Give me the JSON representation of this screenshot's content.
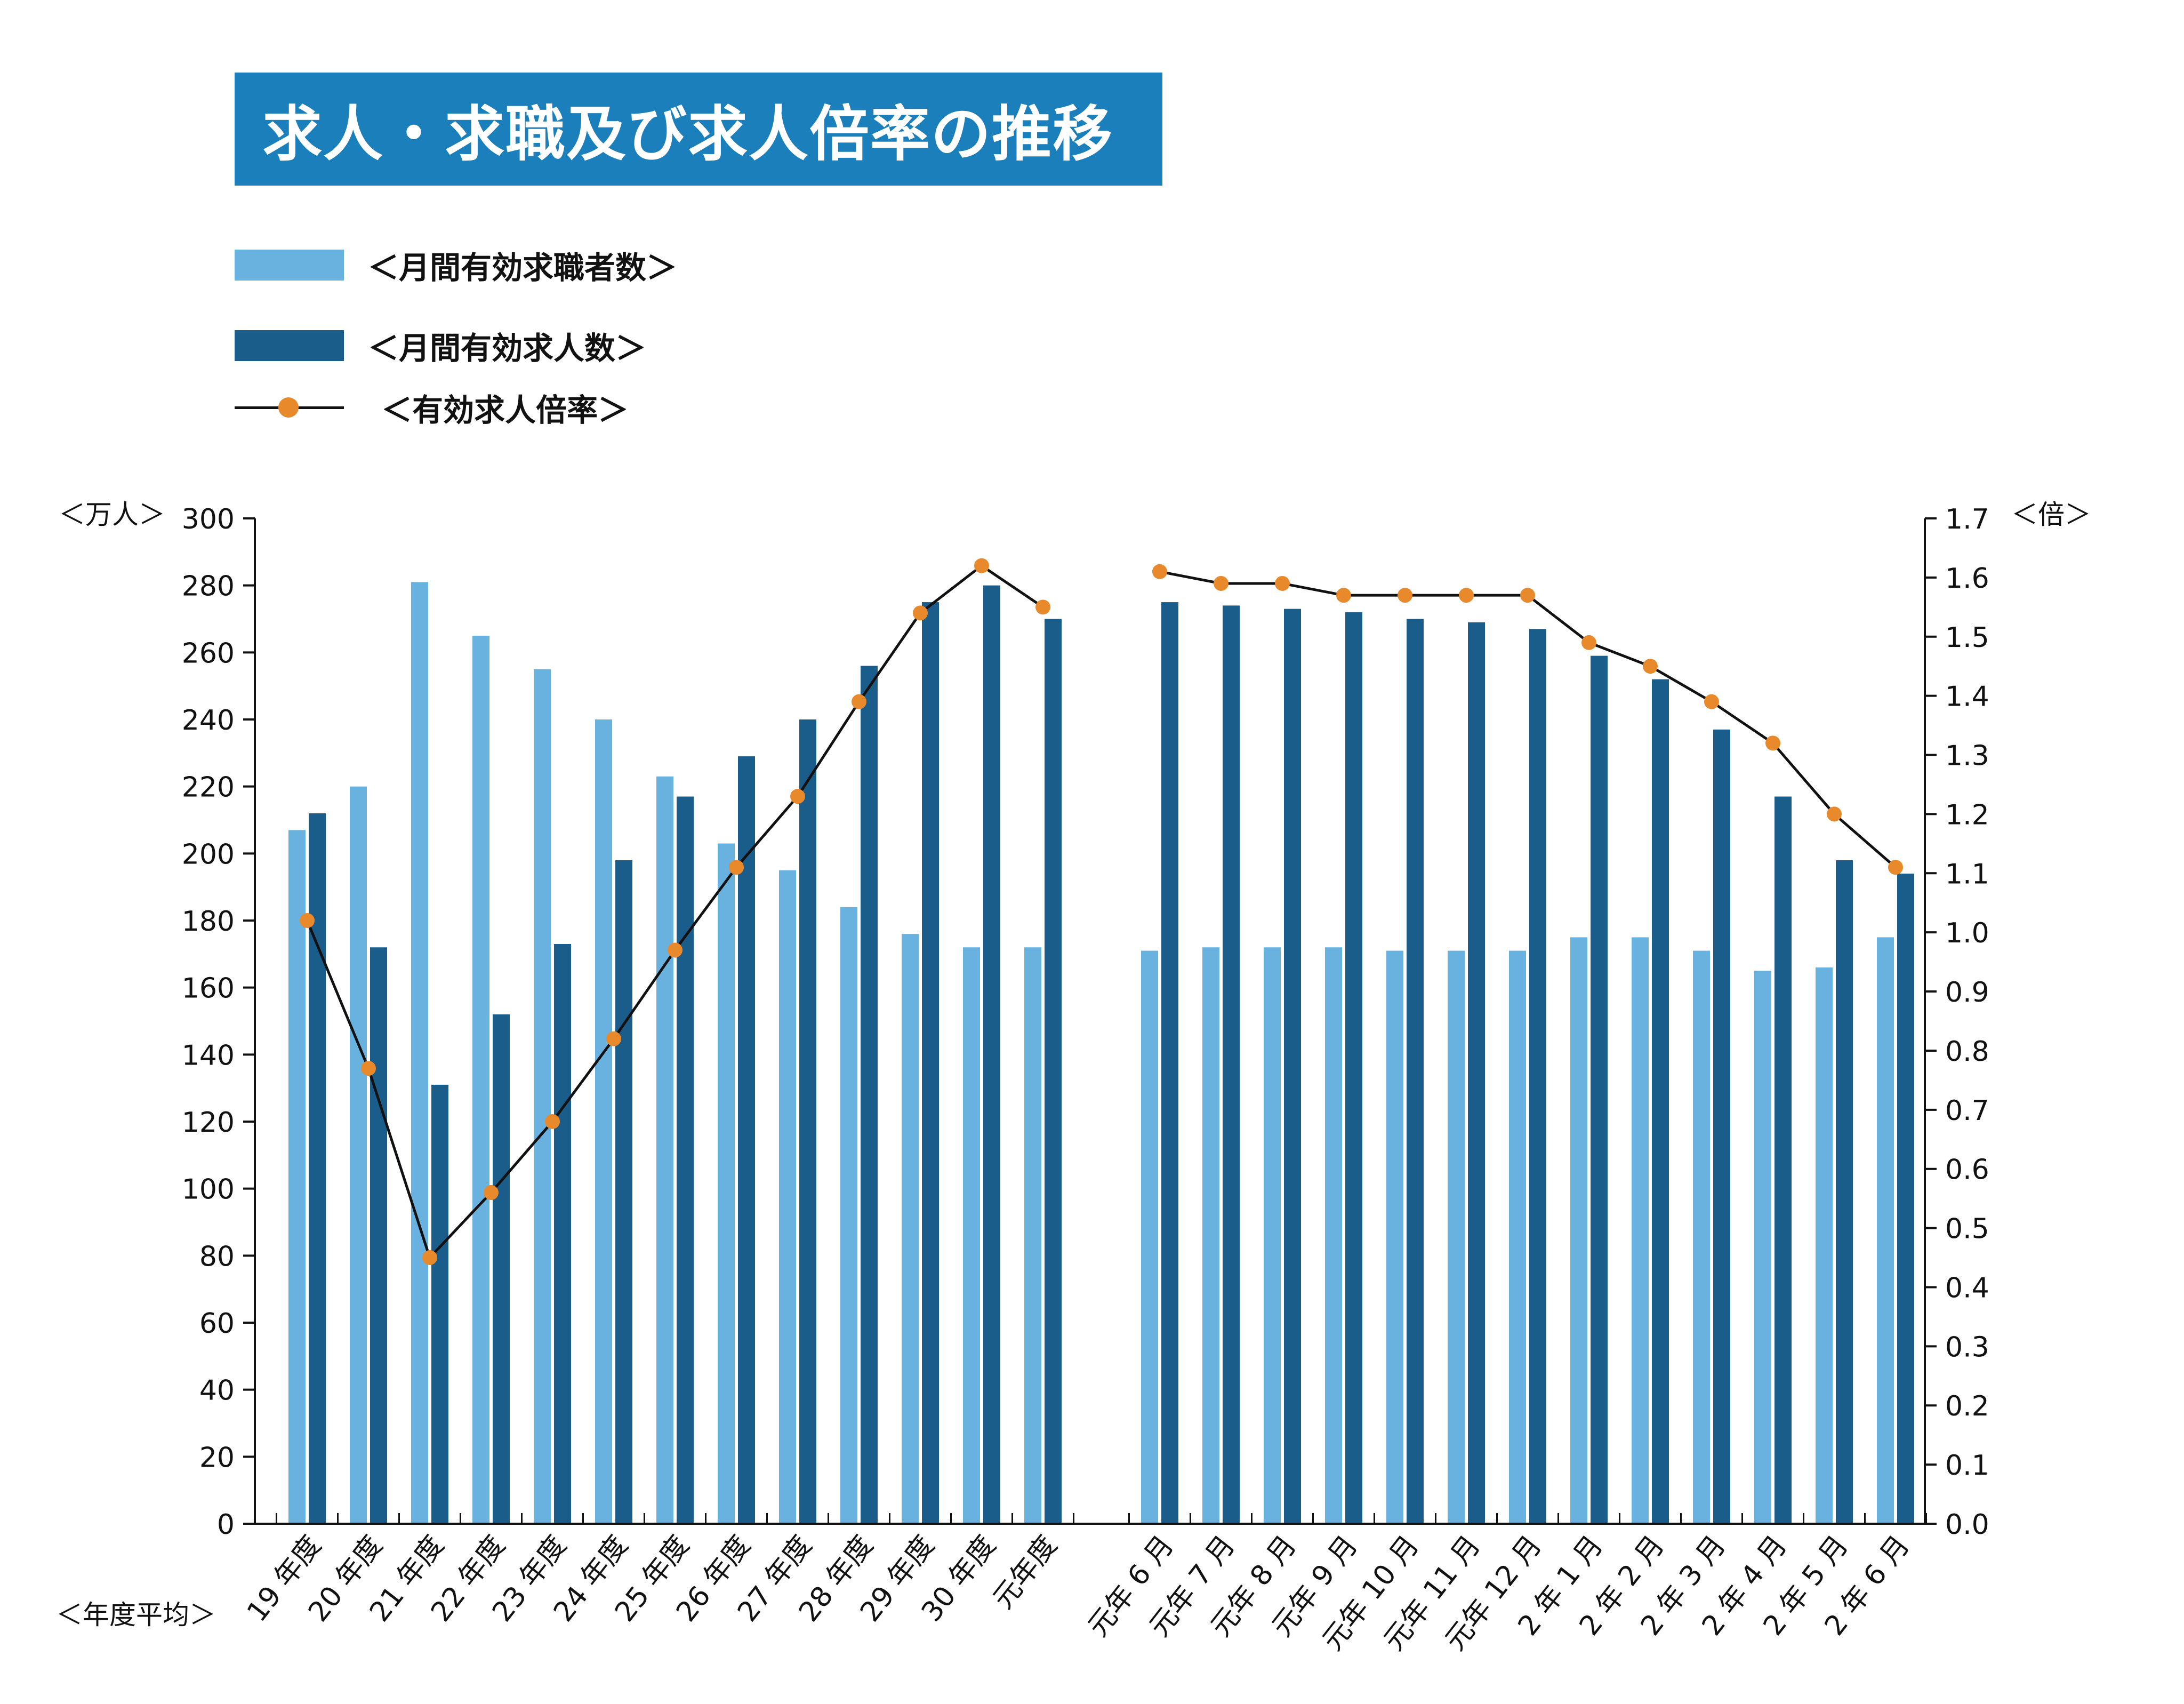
{
  "title": "求人・求職及び求人倍率の推移",
  "legend": {
    "seekers": "＜月間有効求職者数＞",
    "openings": "＜月間有効求人数＞",
    "ratio": "＜有効求人倍率＞"
  },
  "colors": {
    "seekers": "#69b2e0",
    "openings": "#1a5c8a",
    "ratio_marker": "#e8892b",
    "ratio_line": "#111111",
    "title_bg": "#1b7fbc"
  },
  "chart_data": {
    "type": "bar",
    "y_left": {
      "label": "＜万人＞",
      "range": [
        0,
        300
      ],
      "ticks": [
        "0",
        "20",
        "40",
        "60",
        "80",
        "100",
        "120",
        "140",
        "160",
        "180",
        "200",
        "220",
        "240",
        "260",
        "280",
        "300"
      ]
    },
    "y_right": {
      "label": "＜倍＞",
      "range": [
        0.0,
        1.7
      ],
      "ticks": [
        "0.0",
        "0.1",
        "0.2",
        "0.3",
        "0.4",
        "0.5",
        "0.6",
        "0.7",
        "0.8",
        "0.9",
        "1.0",
        "1.1",
        "1.2",
        "1.3",
        "1.4",
        "1.5",
        "1.6",
        "1.7"
      ]
    },
    "xlabel": "＜年度平均＞",
    "group_annual": [
      "19 年度",
      "20 年度",
      "21 年度",
      "22 年度",
      "23 年度",
      "24 年度",
      "25 年度",
      "26 年度",
      "27 年度",
      "28 年度",
      "29 年度",
      "30 年度",
      "元年度"
    ],
    "group_monthly": [
      "元年 6 月",
      "元年 7 月",
      "元年 8 月",
      "元年 9 月",
      "元年 10 月",
      "元年 11 月",
      "元年 12 月",
      "2 年 1 月",
      "2 年 2 月",
      "2 年 3 月",
      "2 年 4 月",
      "2 年 5 月",
      "2 年 6 月"
    ],
    "series": [
      {
        "name": "＜月間有効求職者数＞",
        "axis": "left",
        "annual": [
          207,
          220,
          281,
          265,
          255,
          240,
          223,
          203,
          195,
          184,
          176,
          172,
          172
        ],
        "monthly": [
          171,
          172,
          172,
          172,
          171,
          171,
          171,
          175,
          175,
          171,
          165,
          166,
          175
        ]
      },
      {
        "name": "＜月間有効求人数＞",
        "axis": "left",
        "annual": [
          212,
          172,
          131,
          152,
          173,
          198,
          217,
          229,
          240,
          256,
          275,
          280,
          270
        ],
        "monthly": [
          275,
          274,
          273,
          272,
          270,
          269,
          267,
          259,
          252,
          237,
          217,
          198,
          194
        ]
      },
      {
        "name": "＜有効求人倍率＞",
        "axis": "right",
        "annual": [
          1.02,
          0.77,
          0.45,
          0.56,
          0.68,
          0.82,
          0.97,
          1.11,
          1.23,
          1.39,
          1.54,
          1.62,
          1.55
        ],
        "monthly": [
          1.61,
          1.59,
          1.59,
          1.57,
          1.57,
          1.57,
          1.57,
          1.49,
          1.45,
          1.39,
          1.32,
          1.2,
          1.11
        ]
      }
    ]
  }
}
